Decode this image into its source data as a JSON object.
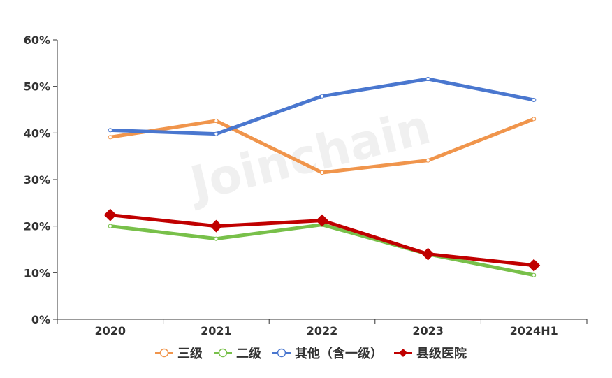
{
  "watermark": "Joinchain",
  "chart_data": {
    "type": "line",
    "categories": [
      "2020",
      "2021",
      "2022",
      "2023",
      "2024H1"
    ],
    "yticks": [
      "0%",
      "10%",
      "20%",
      "30%",
      "40%",
      "50%",
      "60%"
    ],
    "ylim": [
      0,
      60
    ],
    "grid": false,
    "legend_position": "bottom",
    "series": [
      {
        "name": "三级",
        "values": [
          39.1,
          42.6,
          31.5,
          34.1,
          43.0
        ],
        "color": "#f0954c",
        "marker": "hollow-circle"
      },
      {
        "name": "二级",
        "values": [
          20.0,
          17.3,
          20.3,
          14.0,
          9.5
        ],
        "color": "#78c04a",
        "marker": "hollow-circle"
      },
      {
        "name": "其他（含一级）",
        "values": [
          40.6,
          39.8,
          47.9,
          51.6,
          47.1
        ],
        "color": "#4a77cf",
        "marker": "hollow-circle"
      },
      {
        "name": "县级医院",
        "values": [
          22.4,
          20.0,
          21.2,
          14.0,
          11.6
        ],
        "color": "#c00000",
        "marker": "diamond"
      }
    ]
  }
}
